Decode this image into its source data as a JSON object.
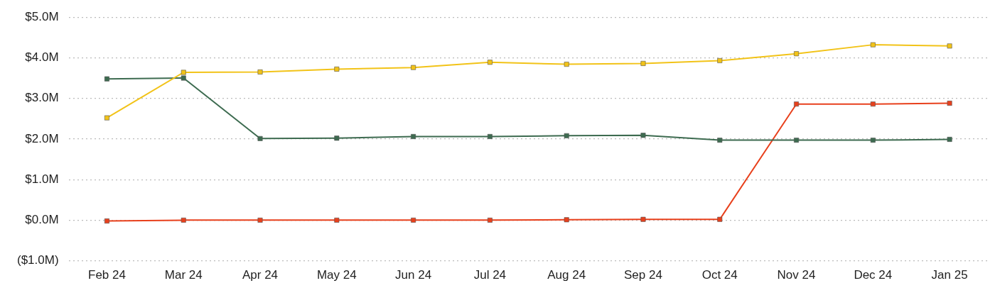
{
  "chart_data": {
    "type": "line",
    "categories": [
      "Feb 24",
      "Mar 24",
      "Apr 24",
      "May 24",
      "Jun 24",
      "Jul 24",
      "Aug 24",
      "Sep 24",
      "Oct 24",
      "Nov 24",
      "Dec 24",
      "Jan 25"
    ],
    "series": [
      {
        "color": "#f2c318",
        "values": [
          2.52,
          3.64,
          3.65,
          3.72,
          3.76,
          3.89,
          3.84,
          3.86,
          3.93,
          4.1,
          4.32,
          4.29
        ]
      },
      {
        "color": "#3d6b50",
        "values": [
          3.48,
          3.5,
          2.01,
          2.02,
          2.06,
          2.06,
          2.08,
          2.09,
          1.97,
          1.97,
          1.97,
          1.99
        ]
      },
      {
        "color": "#e8401c",
        "values": [
          -0.02,
          0,
          0,
          0,
          0,
          0,
          0.01,
          0.02,
          0.02,
          2.86,
          2.86,
          2.88
        ]
      }
    ],
    "ylim": [
      -1,
      5
    ],
    "yticks": [
      {
        "value": -1,
        "label": "($1.0M)"
      },
      {
        "value": 0,
        "label": "$0.0M"
      },
      {
        "value": 1,
        "label": "$1.0M"
      },
      {
        "value": 2,
        "label": "$2.0M"
      },
      {
        "value": 3,
        "label": "$3.0M"
      },
      {
        "value": 4,
        "label": "$4.0M"
      },
      {
        "value": 5,
        "label": "$5.0M"
      }
    ],
    "grid": "y",
    "legend": false,
    "marker": "square",
    "line_style": "solid"
  }
}
